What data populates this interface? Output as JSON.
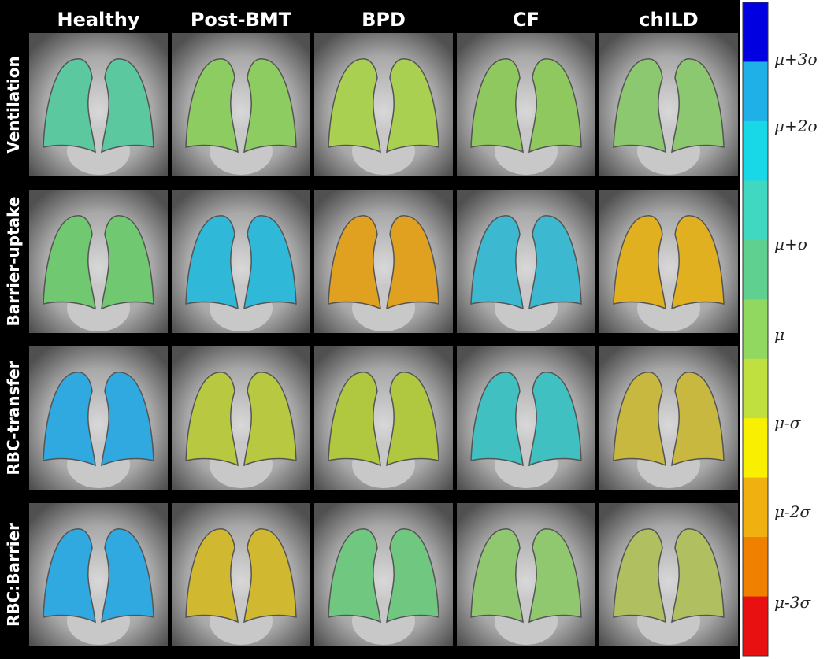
{
  "columns": [
    "Healthy",
    "Post-BMT",
    "BPD",
    "CF",
    "chILD"
  ],
  "rows": [
    "Ventilation",
    "Barrier-uptake",
    "RBC-transfer",
    "RBC:Barrier"
  ],
  "colorbar": {
    "labels": [
      "μ+3σ",
      "μ+2σ",
      "μ+σ",
      "μ",
      "μ-σ",
      "μ-2σ",
      "μ-3σ"
    ]
  }
}
